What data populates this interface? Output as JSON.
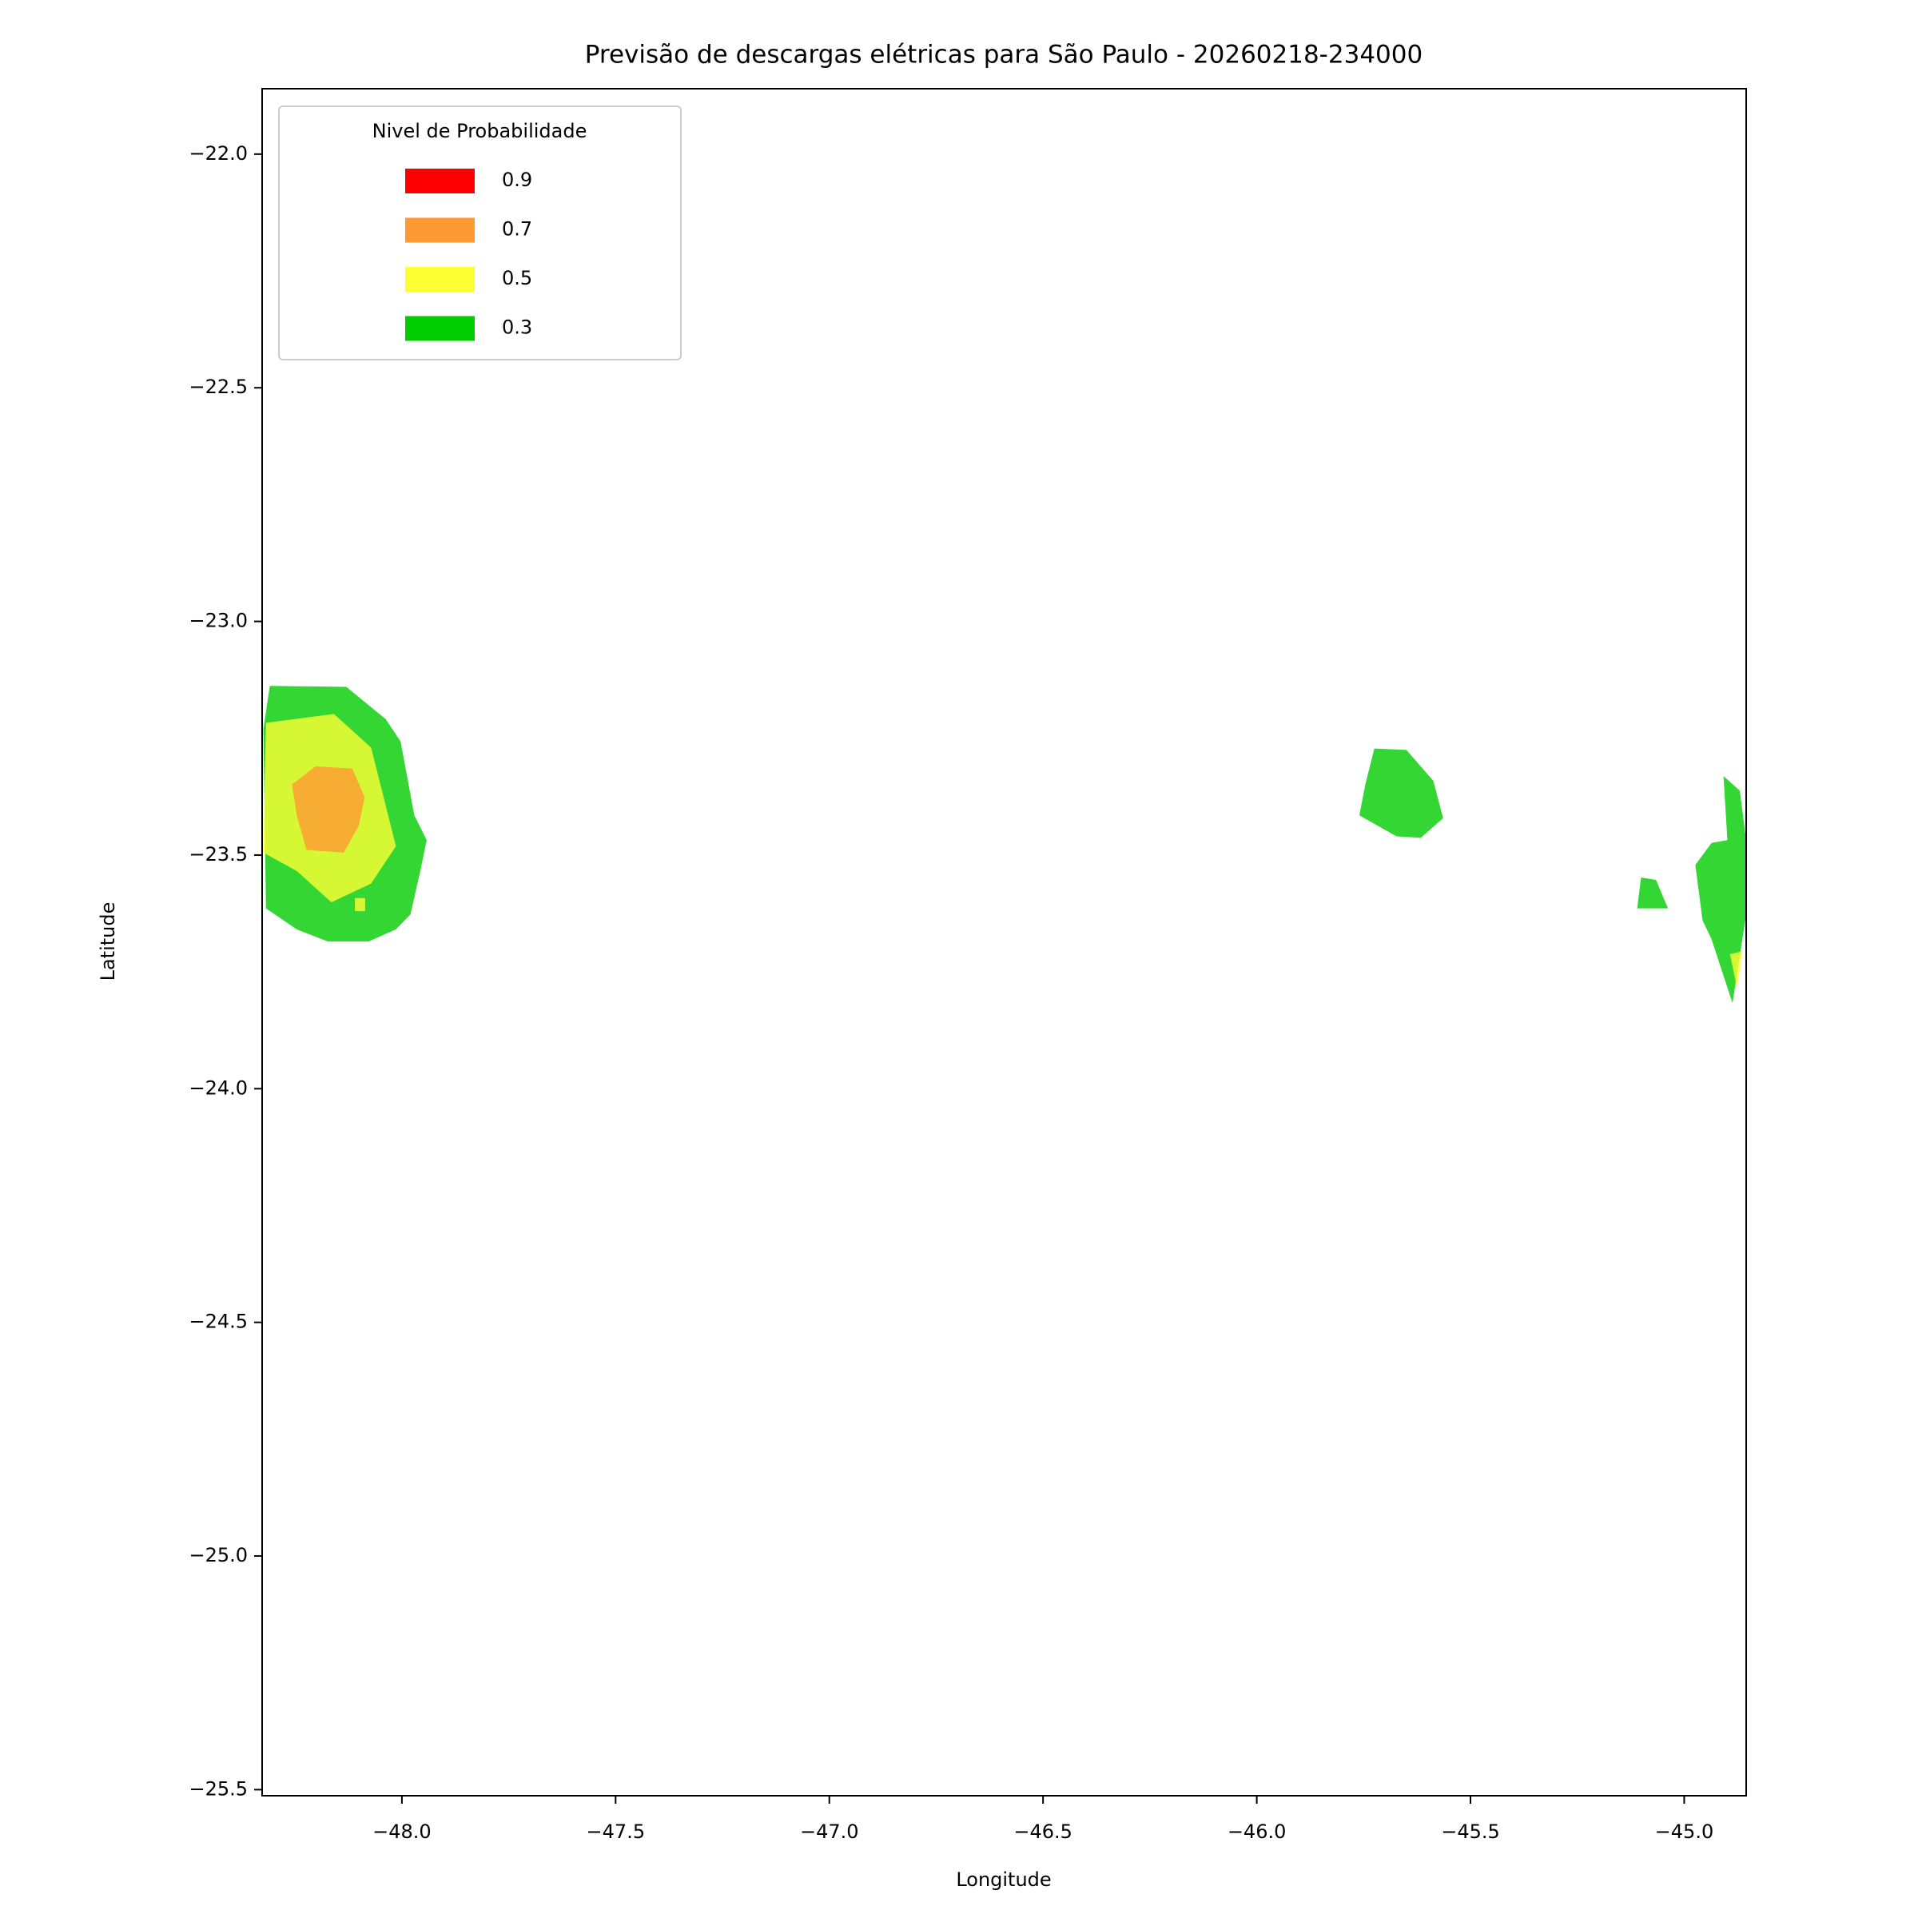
{
  "chart_data": {
    "type": "contour",
    "title": "Previsão de descargas elétricas para São Paulo - 20260218-234000",
    "xlabel": "Longitude",
    "ylabel": "Latitude",
    "xlim": [
      -48.327,
      -44.855
    ],
    "ylim": [
      -25.513,
      -21.86
    ],
    "xticks": [
      {
        "value": -48.0,
        "label": "−48.0"
      },
      {
        "value": -47.5,
        "label": "−47.5"
      },
      {
        "value": -47.0,
        "label": "−47.0"
      },
      {
        "value": -46.5,
        "label": "−46.5"
      },
      {
        "value": -46.0,
        "label": "−46.0"
      },
      {
        "value": -45.5,
        "label": "−45.5"
      },
      {
        "value": -45.0,
        "label": "−45.0"
      }
    ],
    "yticks": [
      {
        "value": -22.0,
        "label": "−22.0"
      },
      {
        "value": -22.5,
        "label": "−22.5"
      },
      {
        "value": -23.0,
        "label": "−23.0"
      },
      {
        "value": -23.5,
        "label": "−23.5"
      },
      {
        "value": -24.0,
        "label": "−24.0"
      },
      {
        "value": -24.5,
        "label": "−24.5"
      },
      {
        "value": -25.0,
        "label": "−25.0"
      },
      {
        "value": -25.5,
        "label": "−25.5"
      }
    ],
    "legend": {
      "title": "Nivel de Probabilidade",
      "loc": "upper left"
    },
    "levels": [
      {
        "value": 0.9,
        "color": "#ff0000"
      },
      {
        "value": 0.7,
        "color": "#ff9933"
      },
      {
        "value": 0.5,
        "color": "#ffff33"
      },
      {
        "value": 0.3,
        "color": "#00cc00"
      }
    ],
    "fill_opacity": 0.8,
    "regions": [
      {
        "level": 0.3,
        "polygon": [
          [
            -48.309,
            -23.138
          ],
          [
            -48.13,
            -23.14
          ],
          [
            -48.038,
            -23.209
          ],
          [
            -48.003,
            -23.257
          ],
          [
            -47.971,
            -23.415
          ],
          [
            -47.942,
            -23.468
          ],
          [
            -47.957,
            -23.534
          ],
          [
            -47.98,
            -23.627
          ],
          [
            -48.014,
            -23.659
          ],
          [
            -48.078,
            -23.685
          ],
          [
            -48.173,
            -23.685
          ],
          [
            -48.246,
            -23.659
          ],
          [
            -48.318,
            -23.614
          ],
          [
            -48.324,
            -23.23
          ]
        ]
      },
      {
        "level": 0.5,
        "polygon": [
          [
            -48.318,
            -23.217
          ],
          [
            -48.159,
            -23.198
          ],
          [
            -48.072,
            -23.27
          ],
          [
            -48.014,
            -23.481
          ],
          [
            -48.072,
            -23.561
          ],
          [
            -48.165,
            -23.601
          ],
          [
            -48.246,
            -23.534
          ],
          [
            -48.324,
            -23.495
          ]
        ]
      },
      {
        "level": 0.7,
        "polygon": [
          [
            -48.202,
            -23.31
          ],
          [
            -48.116,
            -23.315
          ],
          [
            -48.087,
            -23.376
          ],
          [
            -48.101,
            -23.437
          ],
          [
            -48.136,
            -23.495
          ],
          [
            -48.223,
            -23.489
          ],
          [
            -48.246,
            -23.415
          ],
          [
            -48.257,
            -23.349
          ]
        ]
      },
      {
        "level": 0.5,
        "polygon": [
          [
            -48.11,
            -23.592
          ],
          [
            -48.086,
            -23.592
          ],
          [
            -48.086,
            -23.62
          ],
          [
            -48.11,
            -23.62
          ]
        ]
      },
      {
        "level": 0.3,
        "polygon": [
          [
            -45.725,
            -23.272
          ],
          [
            -45.65,
            -23.275
          ],
          [
            -45.587,
            -23.341
          ],
          [
            -45.564,
            -23.421
          ],
          [
            -45.616,
            -23.463
          ],
          [
            -45.673,
            -23.46
          ],
          [
            -45.76,
            -23.415
          ],
          [
            -45.746,
            -23.349
          ]
        ]
      },
      {
        "level": 0.3,
        "polygon": [
          [
            -44.908,
            -23.331
          ],
          [
            -44.87,
            -23.362
          ],
          [
            -44.855,
            -23.468
          ],
          [
            -44.855,
            -23.627
          ],
          [
            -44.887,
            -23.817
          ],
          [
            -44.936,
            -23.68
          ],
          [
            -44.957,
            -23.64
          ],
          [
            -44.974,
            -23.521
          ],
          [
            -44.936,
            -23.474
          ],
          [
            -44.899,
            -23.468
          ]
        ]
      },
      {
        "level": 0.3,
        "polygon": [
          [
            -45.101,
            -23.548
          ],
          [
            -45.066,
            -23.553
          ],
          [
            -45.038,
            -23.614
          ],
          [
            -45.11,
            -23.614
          ]
        ]
      },
      {
        "level": 0.5,
        "polygon": [
          [
            -44.893,
            -23.712
          ],
          [
            -44.864,
            -23.706
          ],
          [
            -44.876,
            -23.786
          ]
        ]
      }
    ]
  }
}
